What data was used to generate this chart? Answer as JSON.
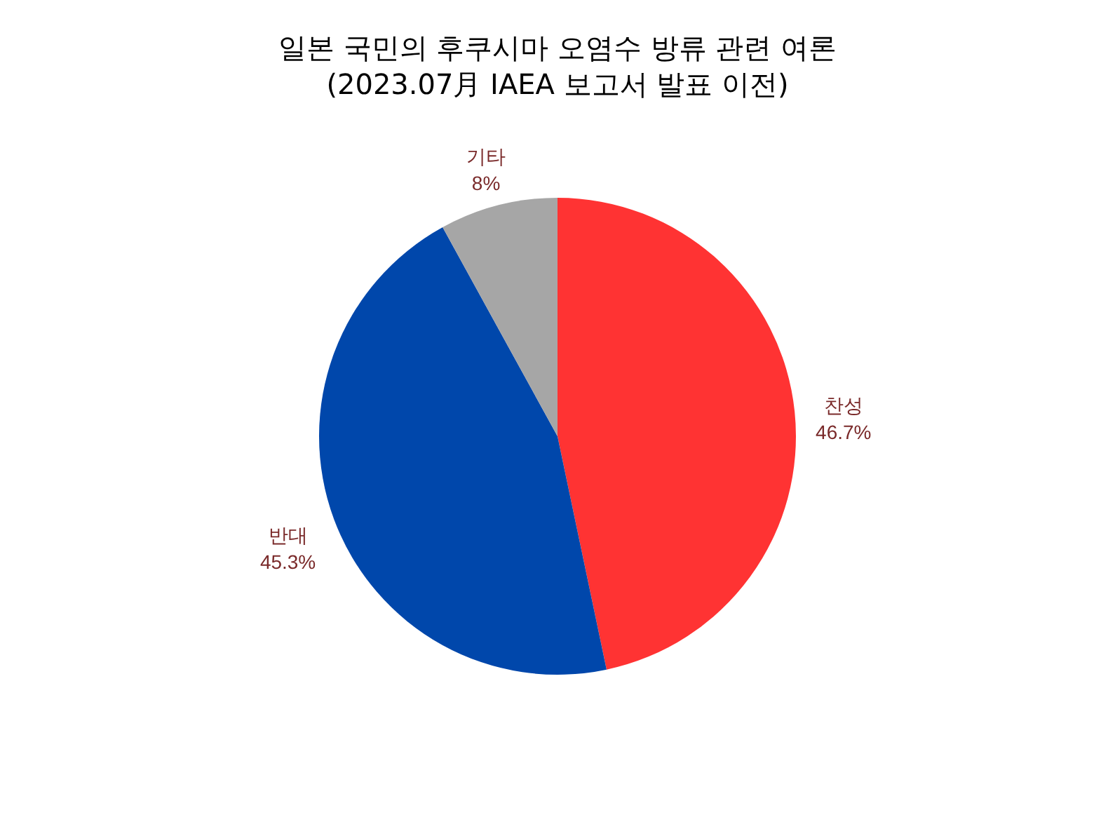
{
  "chart_data": {
    "type": "pie",
    "title": "일본 국민의 후쿠시마 오염수 방류 관련 여론",
    "subtitle": "(2023.07月 IAEA 보고서 발표 이전)",
    "categories": [
      "찬성",
      "반대",
      "기타"
    ],
    "values": [
      46.7,
      45.3,
      8
    ],
    "colors": [
      "#ff3333",
      "#0047ab",
      "#a6a6a6"
    ],
    "value_labels": [
      "46.7%",
      "45.3%",
      "8%"
    ],
    "legend": false
  }
}
